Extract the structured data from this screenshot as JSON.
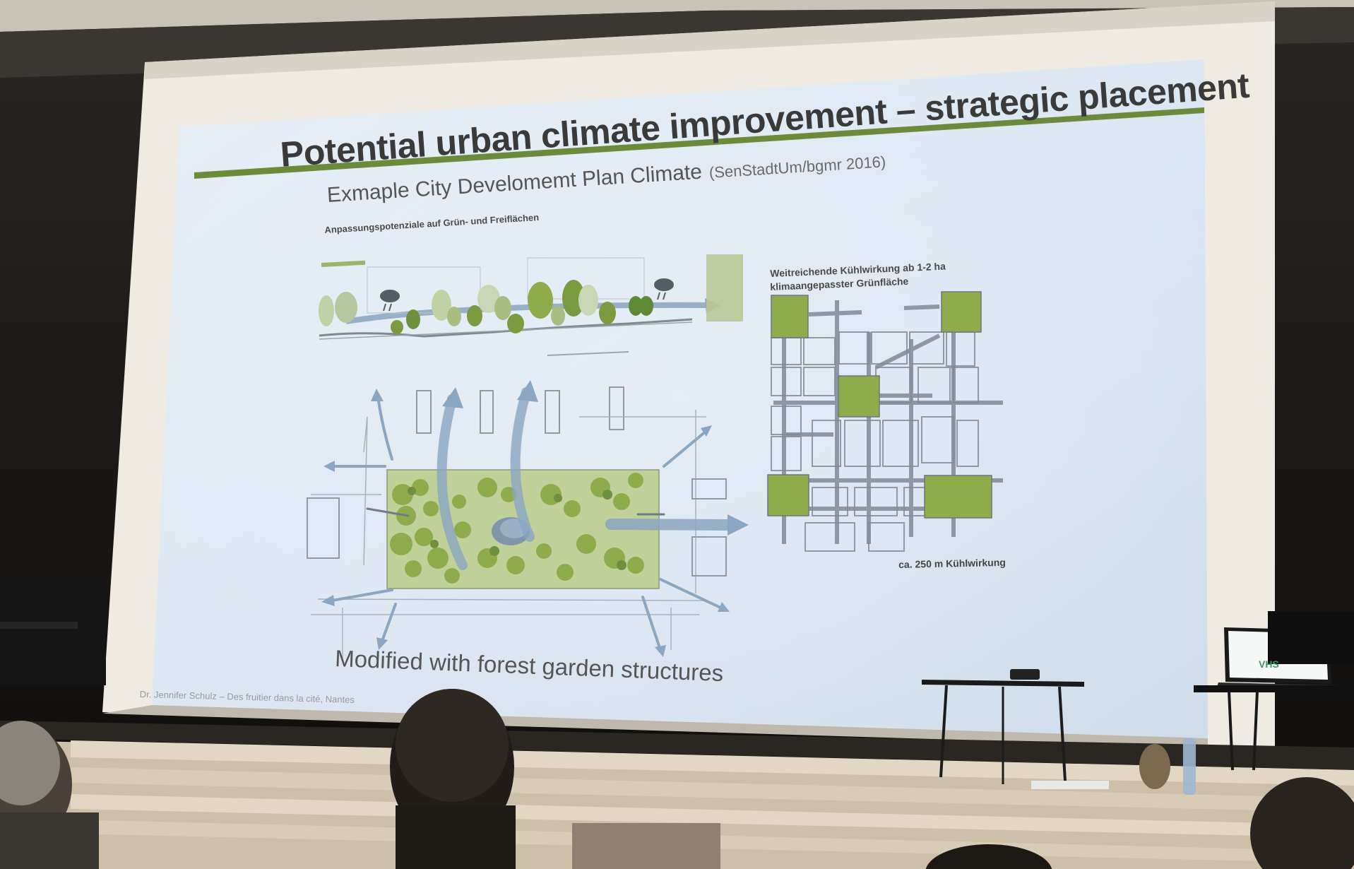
{
  "slide": {
    "title": "Potential urban climate improvement – strategic placement",
    "subtitle": "Exmaple City Develomemt Plan Climate",
    "source": "(SenStadtUm/bgmr 2016)",
    "diagram_heading": "Anpassungspotenziale auf Grün- und Freiflächen",
    "right_label_line1": "Weitreichende Kühlwirkung ab 1-2 ha",
    "right_label_line2": "klimaangepasster Grünfläche",
    "scale_label": "ca. 250 m Kühlwirkung",
    "caption": "Modified with forest garden structures",
    "credit": "Dr. Jennifer Schulz – Des fruitier dans la cité, Nantes"
  },
  "laptop": {
    "screen_text": "VHS"
  },
  "colors": {
    "slide_background": "#dfe9f4",
    "title_rule": "#6a8b3c",
    "green_area": "#8fac4c",
    "tree_dark": "#5e8a36",
    "tree_light": "#a9c27e",
    "arrow_blue": "#8aa6c0",
    "street_grey": "#8f9aa5",
    "stage_wall": "#1a1816",
    "seating": "#d3c8b4"
  },
  "icons": {
    "cloud_rain": "cloud-rain-icon",
    "arrow": "cooling-airflow-arrow-icon"
  }
}
